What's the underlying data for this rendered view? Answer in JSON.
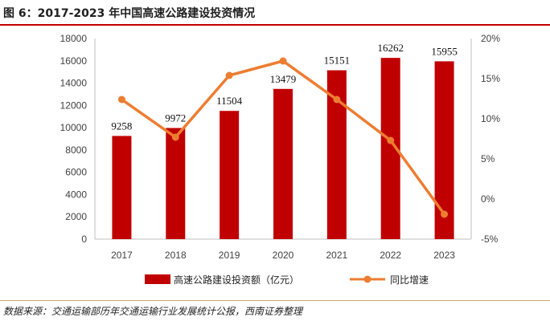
{
  "figure": {
    "title": "图 6：2017-2023 年中国高速公路建设投资情况",
    "source": "数据来源：交通运输部历年交通运输行业发展统计公报，西南证券整理"
  },
  "colors": {
    "bar": "#c00000",
    "line": "#ed7d31",
    "accent": "#c00000"
  },
  "chart_data": {
    "type": "bar",
    "categories": [
      "2017",
      "2018",
      "2019",
      "2020",
      "2021",
      "2022",
      "2023"
    ],
    "series": [
      {
        "name": "高速公路建设投资额（亿元）",
        "type": "bar",
        "axis": "left",
        "values": [
          9258,
          9972,
          11504,
          13479,
          15151,
          16262,
          15955
        ]
      },
      {
        "name": "同比增速",
        "type": "line",
        "axis": "right",
        "values": [
          12.4,
          7.7,
          15.4,
          17.2,
          12.4,
          7.3,
          -1.9
        ]
      }
    ],
    "data_labels": [
      "9258",
      "9972",
      "11504",
      "13479",
      "15151",
      "16262",
      "15955"
    ],
    "y_left": {
      "min": 0,
      "max": 18000,
      "step": 2000,
      "ticks": [
        "0",
        "2000",
        "4000",
        "6000",
        "8000",
        "10000",
        "12000",
        "14000",
        "16000",
        "18000"
      ]
    },
    "y_right": {
      "min": -5,
      "max": 20,
      "step": 5,
      "ticks": [
        "-5%",
        "0%",
        "5%",
        "10%",
        "15%",
        "20%"
      ]
    },
    "legend": {
      "position": "bottom",
      "items": [
        "高速公路建设投资额（亿元）",
        "同比增速"
      ]
    }
  }
}
